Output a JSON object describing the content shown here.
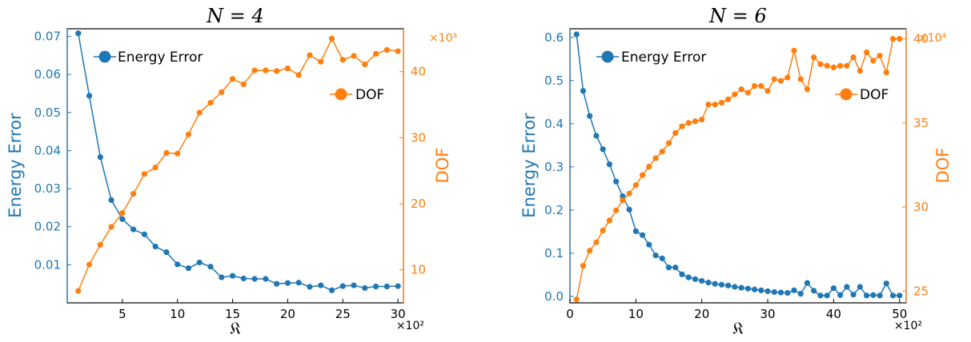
{
  "colors": {
    "error": "#1f77b4",
    "dof": "#ff7f0e",
    "axis": "#000000"
  },
  "charts": [
    {
      "title_text": "N = 4",
      "xlabel": "𝔎",
      "ylabel_left": "Energy Error",
      "ylabel_right": "DOF",
      "x_multiplier": "×10²",
      "y2_multiplier": "×10³",
      "legend_error": "Energy Error",
      "legend_dof": "DOF"
    },
    {
      "title_text": "N = 6",
      "xlabel": "𝔎",
      "ylabel_left": "Energy Error",
      "ylabel_right": "DOF",
      "x_multiplier": "×10²",
      "y2_multiplier": "×10⁴",
      "legend_error": "Energy Error",
      "legend_dof": "DOF"
    }
  ],
  "chart_data": [
    {
      "type": "line",
      "title": "N = 4",
      "xlabel": "𝔎",
      "x_scale_note": "×10²",
      "xlim": [
        0,
        30.5
      ],
      "xticks": [
        5,
        10,
        15,
        20,
        25,
        30
      ],
      "ylim": [
        0,
        0.072
      ],
      "yticks": [
        0.01,
        0.02,
        0.03,
        0.04,
        0.05,
        0.06,
        0.07
      ],
      "y2lim": [
        5,
        46.5
      ],
      "y2ticks": [
        10,
        20,
        30,
        40
      ],
      "y2_scale_note": "×10³",
      "legend": [
        "Energy Error",
        "DOF"
      ],
      "x": [
        1,
        2,
        3,
        4,
        5,
        6,
        7,
        8,
        9,
        10,
        11,
        12,
        13,
        14,
        15,
        16,
        17,
        18,
        19,
        20,
        21,
        22,
        23,
        24,
        25,
        26,
        27,
        28,
        29,
        30
      ],
      "series": [
        {
          "name": "Energy Error",
          "axis": "left",
          "values": [
            0.0708,
            0.0544,
            0.0383,
            0.027,
            0.022,
            0.0193,
            0.018,
            0.0148,
            0.0133,
            0.0101,
            0.0091,
            0.0106,
            0.0095,
            0.0067,
            0.0071,
            0.0064,
            0.0063,
            0.0063,
            0.005,
            0.0052,
            0.0053,
            0.0042,
            0.0046,
            0.0033,
            0.0044,
            0.0046,
            0.0039,
            0.0043,
            0.0043,
            0.0044
          ]
        },
        {
          "name": "DOF",
          "axis": "right",
          "values": [
            6.8,
            10.8,
            13.8,
            16.5,
            18.6,
            21.5,
            24.5,
            25.5,
            27.7,
            27.6,
            30.5,
            33.8,
            35.3,
            36.9,
            38.9,
            38.1,
            40.2,
            40.2,
            40.1,
            40.5,
            39.5,
            42.5,
            41.5,
            45.0,
            41.8,
            42.4,
            41.1,
            42.7,
            43.3,
            43.1
          ]
        }
      ]
    },
    {
      "type": "line",
      "title": "N = 6",
      "xlabel": "𝔎",
      "x_scale_note": "×10²",
      "xlim": [
        0,
        51
      ],
      "xticks": [
        0,
        10,
        20,
        30,
        40,
        50
      ],
      "ylim": [
        -0.015,
        0.62
      ],
      "yticks": [
        0.0,
        0.1,
        0.2,
        0.3,
        0.4,
        0.5,
        0.6
      ],
      "y2lim": [
        24.3,
        40.6
      ],
      "y2ticks": [
        25,
        30,
        35,
        40
      ],
      "y2_scale_note": "×10⁴",
      "legend": [
        "Energy Error",
        "DOF"
      ],
      "x": [
        1,
        2,
        3,
        4,
        5,
        6,
        7,
        8,
        9,
        10,
        11,
        12,
        13,
        14,
        15,
        16,
        17,
        18,
        19,
        20,
        21,
        22,
        23,
        24,
        25,
        26,
        27,
        28,
        29,
        30,
        31,
        32,
        33,
        34,
        35,
        36,
        37,
        38,
        39,
        40,
        41,
        42,
        43,
        44,
        45,
        46,
        47,
        48,
        49,
        50
      ],
      "series": [
        {
          "name": "Energy Error",
          "axis": "left",
          "values": [
            0.607,
            0.476,
            0.418,
            0.372,
            0.341,
            0.306,
            0.266,
            0.232,
            0.201,
            0.151,
            0.142,
            0.12,
            0.095,
            0.088,
            0.067,
            0.067,
            0.051,
            0.044,
            0.04,
            0.036,
            0.032,
            0.029,
            0.027,
            0.025,
            0.022,
            0.02,
            0.018,
            0.016,
            0.014,
            0.012,
            0.01,
            0.009,
            0.008,
            0.014,
            0.006,
            0.031,
            0.013,
            0.002,
            0.002,
            0.019,
            0.003,
            0.022,
            0.004,
            0.022,
            0.002,
            0.003,
            0.002,
            0.03,
            0.002,
            0.002
          ]
        },
        {
          "name": "DOF",
          "axis": "right",
          "values": [
            24.5,
            26.5,
            27.4,
            27.9,
            28.6,
            29.2,
            29.8,
            30.4,
            30.8,
            31.3,
            31.9,
            32.4,
            32.9,
            33.3,
            33.8,
            34.4,
            34.8,
            35.0,
            35.1,
            35.2,
            36.1,
            36.1,
            36.2,
            36.4,
            36.7,
            37.0,
            36.8,
            37.2,
            37.2,
            36.9,
            37.6,
            37.5,
            37.7,
            39.3,
            37.6,
            37.0,
            38.9,
            38.5,
            38.4,
            38.3,
            38.4,
            38.4,
            38.9,
            38.1,
            39.2,
            38.7,
            39.0,
            38.0,
            40.0,
            40.0
          ]
        }
      ]
    }
  ]
}
